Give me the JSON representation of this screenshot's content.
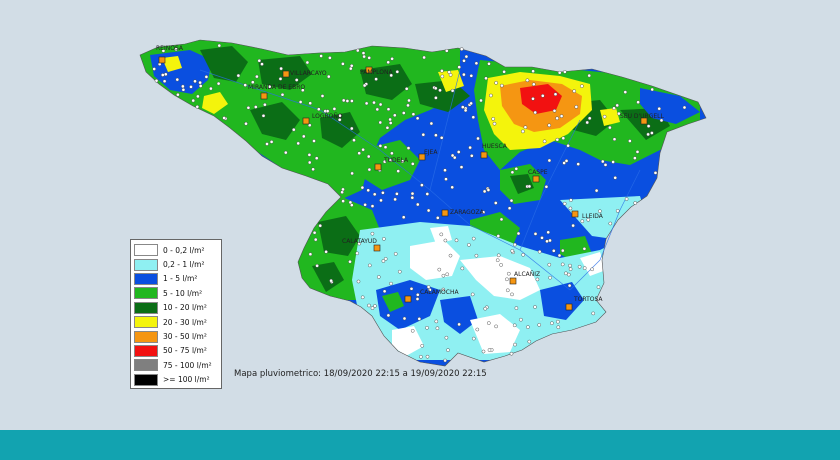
{
  "map": {
    "cities": [
      {
        "id": "reinosa",
        "name": "REINOSA"
      },
      {
        "id": "villarcayo",
        "name": "VILLARCAYO"
      },
      {
        "id": "miranda",
        "name": "MIRANDA DE EBRO"
      },
      {
        "id": "pamplona",
        "name": "PAMPLONA"
      },
      {
        "id": "logrono",
        "name": "LOGROÑO"
      },
      {
        "id": "tudela",
        "name": "TUDELA"
      },
      {
        "id": "ejea",
        "name": "EJEA"
      },
      {
        "id": "huesca",
        "name": "HUESCA"
      },
      {
        "id": "seu",
        "name": "SEU D'URGELL"
      },
      {
        "id": "lleida",
        "name": "LLEIDA"
      },
      {
        "id": "caspe",
        "name": "CASPE"
      },
      {
        "id": "zaragoza",
        "name": "ZARAGOZA"
      },
      {
        "id": "calatayud",
        "name": "CALATAYUD"
      },
      {
        "id": "alcaniz",
        "name": "ALCAÑIZ"
      },
      {
        "id": "calamocha",
        "name": "CALAMOCHA"
      },
      {
        "id": "tortosa",
        "name": "TORTOSA"
      }
    ]
  },
  "legend": {
    "items": [
      {
        "label": "0 - 0,2 l/m²",
        "color": "#ffffff"
      },
      {
        "label": "0,2 - 1 l/m²",
        "color": "#8ff0f2"
      },
      {
        "label": "1 - 5 l/m²",
        "color": "#0a4fe0"
      },
      {
        "label": "5 - 10 l/m²",
        "color": "#21b71f"
      },
      {
        "label": "10 - 20 l/m²",
        "color": "#0b6e16"
      },
      {
        "label": "20 - 30 l/m²",
        "color": "#f4f40c"
      },
      {
        "label": "30 - 50 l/m²",
        "color": "#f59612"
      },
      {
        "label": "50 - 75 l/m²",
        "color": "#f21111"
      },
      {
        "label": "75 - 100 l/m²",
        "color": "#7f7f7f"
      },
      {
        "label": ">= 100 l/m²",
        "color": "#000000"
      }
    ]
  },
  "caption": "Mapa pluviometrico: 18/09/2020 22:15 a 19/09/2020 22:15"
}
